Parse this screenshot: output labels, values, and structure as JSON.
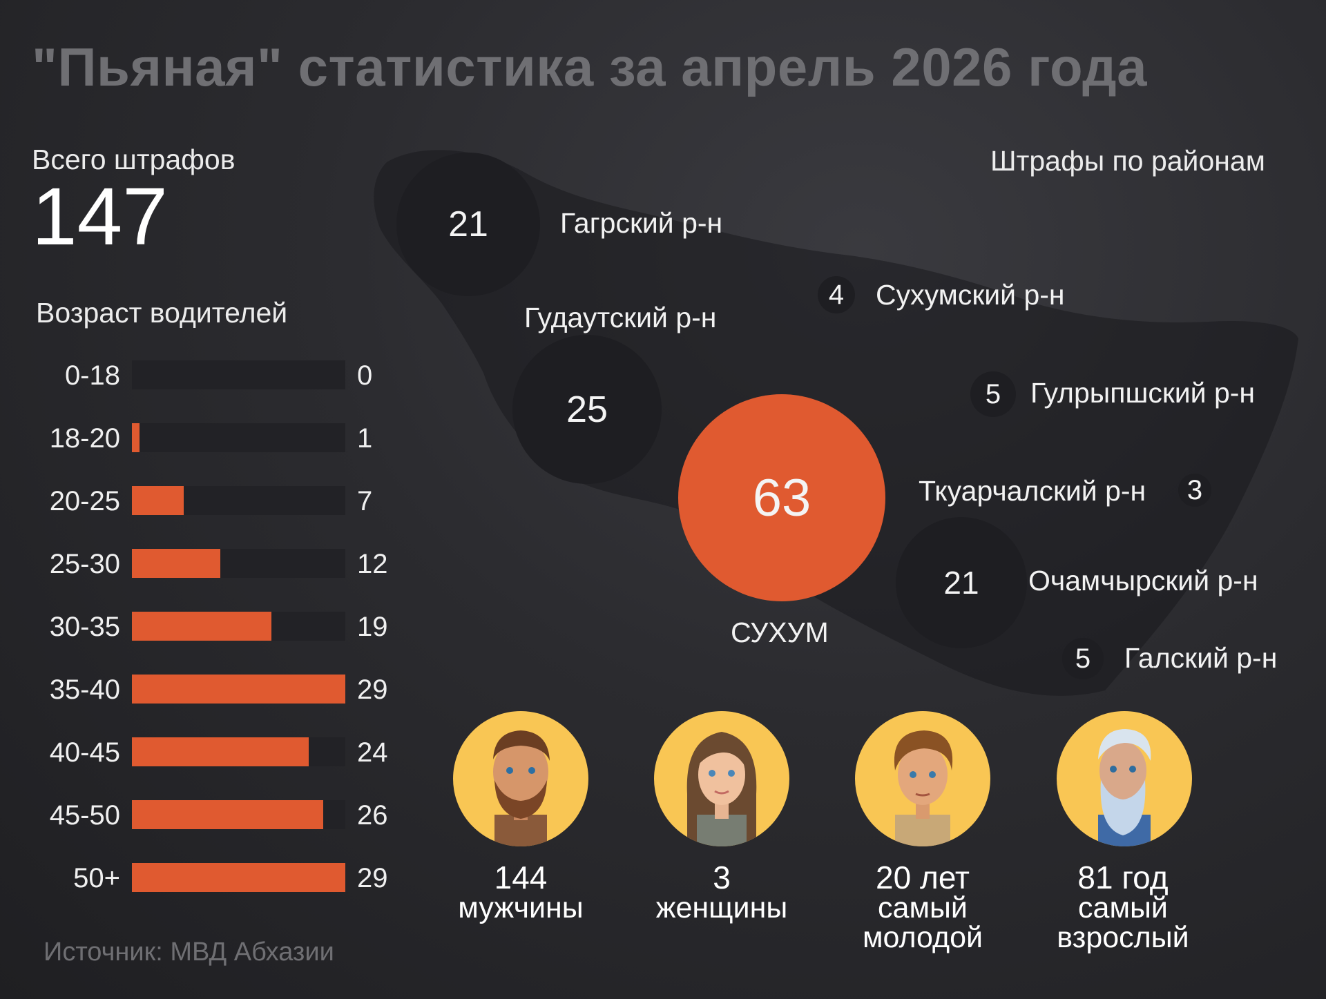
{
  "title": "\"Пьяная\" статистика за апрель 2026 года",
  "total": {
    "label": "Всего штрафов",
    "value": "147"
  },
  "age_title": "Возраст водителей",
  "source": "Источник: МВД Абхазии",
  "districts_title": "Штрафы по районам",
  "colors": {
    "accent": "#e05a30",
    "bubble": "#1e1e22",
    "title": "#6f6f73"
  },
  "chart_data": [
    {
      "type": "bar",
      "orientation": "horizontal",
      "title": "Возраст водителей",
      "categories": [
        "0-18",
        "18-20",
        "20-25",
        "25-30",
        "30-35",
        "35-40",
        "40-45",
        "45-50",
        "50+"
      ],
      "values": [
        0,
        1,
        7,
        12,
        19,
        29,
        24,
        26,
        29
      ],
      "xlim": [
        0,
        29
      ]
    },
    {
      "type": "bubble",
      "title": "Штрафы по районам",
      "items": [
        {
          "name": "Гагрский р-н",
          "value": 21
        },
        {
          "name": "Гудаутский р-н",
          "value": 25
        },
        {
          "name": "Сухумский р-н",
          "value": 4
        },
        {
          "name": "Гулрыпшский р-н",
          "value": 5
        },
        {
          "name": "СУХУМ",
          "value": 63
        },
        {
          "name": "Ткуарчалский р-н",
          "value": 3
        },
        {
          "name": "Очамчырский р-н",
          "value": 21
        },
        {
          "name": "Галский р-н",
          "value": 5
        }
      ]
    }
  ],
  "stats": [
    {
      "value": "144",
      "label": "мужчины",
      "icon": "man-avatar-icon"
    },
    {
      "value": "3",
      "label": "женщины",
      "icon": "woman-avatar-icon"
    },
    {
      "value": "20 лет",
      "label": "самый молодой",
      "icon": "young-man-avatar-icon"
    },
    {
      "value": "81 год",
      "label": "самый взрослый",
      "icon": "old-man-avatar-icon"
    }
  ]
}
